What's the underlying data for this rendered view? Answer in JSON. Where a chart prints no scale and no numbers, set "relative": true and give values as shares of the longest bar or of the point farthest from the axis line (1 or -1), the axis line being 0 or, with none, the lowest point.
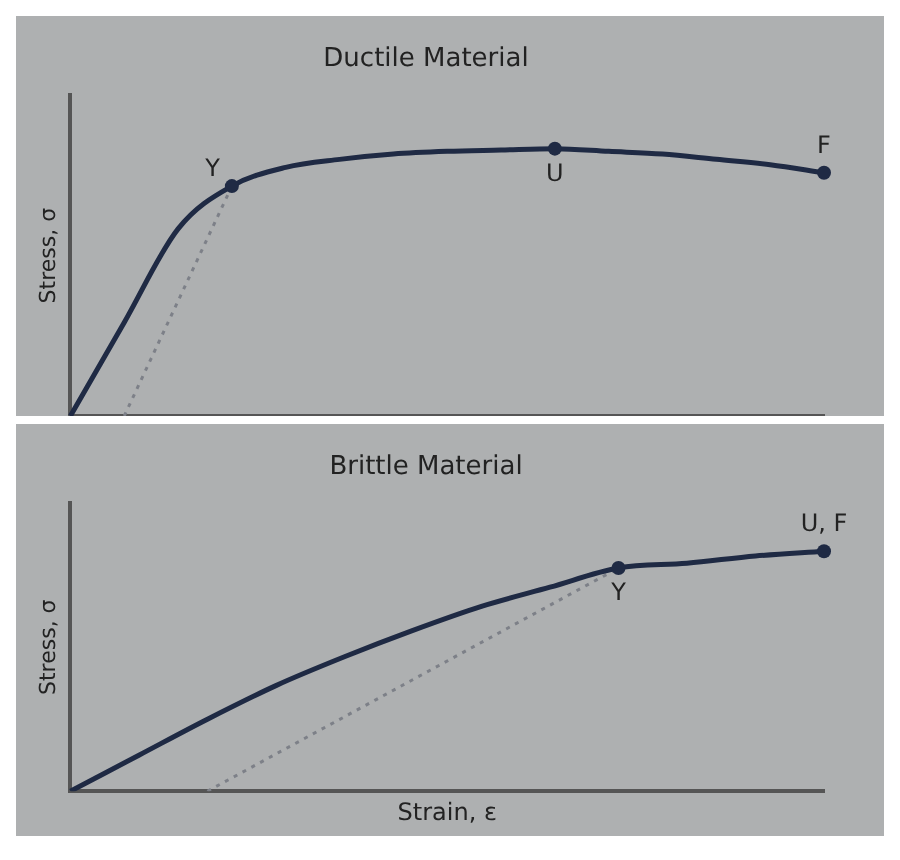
{
  "chart_data": [
    {
      "type": "line",
      "title": "Ductile Material",
      "ylabel": "Stress, σ",
      "relative": true,
      "categories": [
        null,
        null,
        null,
        null,
        null,
        null,
        null,
        null,
        null,
        null,
        null,
        null,
        null,
        null,
        null
      ],
      "marker": "none",
      "annotations": [
        {
          "text": "Y",
          "y": 0.86
        },
        {
          "text": "U",
          "y": 1.0
        },
        {
          "text": "F",
          "y": 0.91
        }
      ],
      "series": [
        {
          "color": "#1f2a44",
          "values": [
            0,
            0.35,
            0.7,
            0.86,
            0.93,
            0.96,
            0.98,
            0.99,
            0.995,
            1.0,
            0.99,
            0.98,
            0.96,
            0.94,
            0.91
          ],
          "line_style": "solid"
        },
        {
          "color": "#7d8088",
          "values": [
            null,
            0,
            null,
            0.86,
            null,
            null,
            null,
            null,
            null,
            null,
            null,
            null,
            null,
            null,
            null
          ],
          "line_style": "dotted"
        }
      ]
    },
    {
      "type": "line",
      "title": "Brittle Material",
      "xlabel": "Strain, ε",
      "ylabel": "Stress, σ",
      "relative": true,
      "categories": [
        null,
        null,
        null,
        null,
        null,
        null,
        null,
        null,
        null,
        null,
        null,
        null
      ],
      "marker": "none",
      "annotations": [
        {
          "text": "Y",
          "y": 0.93
        },
        {
          "text": "U, F",
          "y": 1.0
        }
      ],
      "series": [
        {
          "color": "#1f2a44",
          "values": [
            0,
            0.15,
            0.3,
            0.44,
            0.56,
            0.67,
            0.77,
            0.85,
            0.93,
            0.95,
            0.98,
            1.0
          ],
          "line_style": "solid"
        },
        {
          "color": "#7d8088",
          "values": [
            null,
            null,
            0,
            null,
            null,
            null,
            null,
            null,
            0.93,
            null,
            null,
            null
          ],
          "line_style": "dotted"
        }
      ]
    }
  ]
}
